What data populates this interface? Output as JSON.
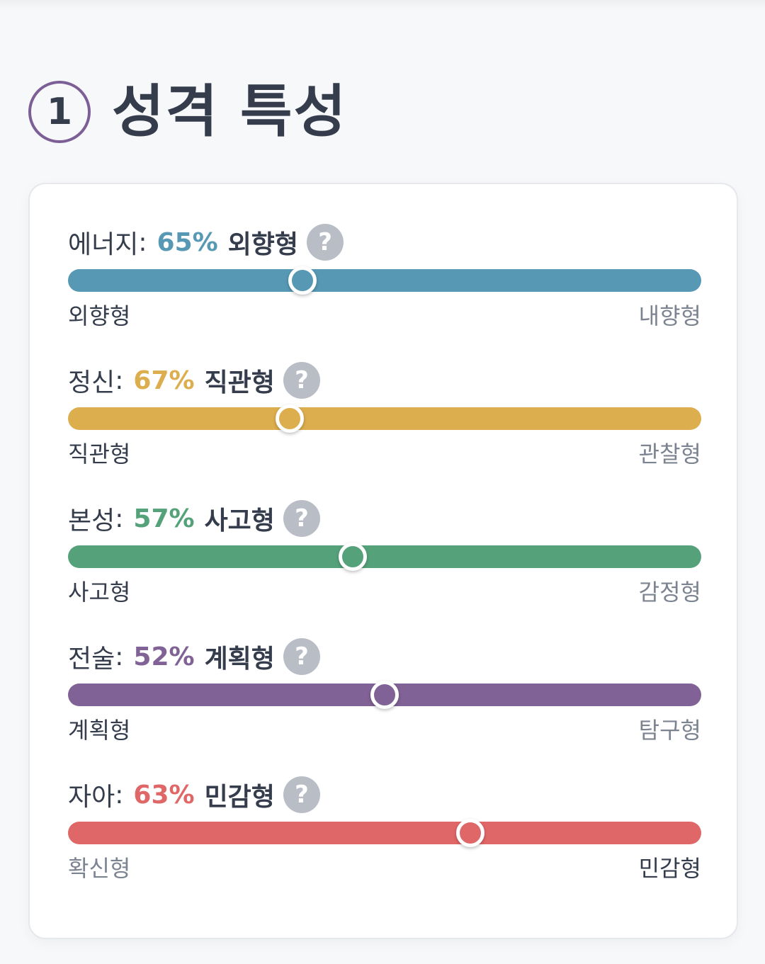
{
  "section": {
    "number": "1",
    "title": "성격 특성"
  },
  "traits": [
    {
      "name": "에너지",
      "percent_label": "65%",
      "result": "외향형",
      "left_label": "외향형",
      "right_label": "내향형",
      "color": "#5799b5",
      "knob_position": 0.37,
      "dominant_side": "left"
    },
    {
      "name": "정신",
      "percent_label": "67%",
      "result": "직관형",
      "left_label": "직관형",
      "right_label": "관찰형",
      "color": "#dcae4e",
      "knob_position": 0.35,
      "dominant_side": "left"
    },
    {
      "name": "본성",
      "percent_label": "57%",
      "result": "사고형",
      "left_label": "사고형",
      "right_label": "감정형",
      "color": "#55a27a",
      "knob_position": 0.45,
      "dominant_side": "left"
    },
    {
      "name": "전술",
      "percent_label": "52%",
      "result": "계획형",
      "left_label": "계획형",
      "right_label": "탐구형",
      "color": "#806296",
      "knob_position": 0.5,
      "dominant_side": "left"
    },
    {
      "name": "자아",
      "percent_label": "63%",
      "result": "민감형",
      "left_label": "확신형",
      "right_label": "민감형",
      "color": "#e06767",
      "knob_position": 0.635,
      "dominant_side": "right"
    }
  ],
  "icons": {
    "help": "?"
  }
}
